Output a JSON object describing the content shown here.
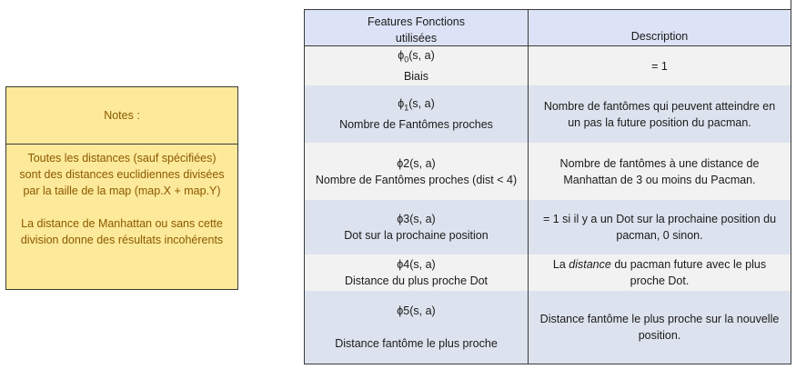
{
  "notes": {
    "title": "Notes :",
    "line1": "Toutes les distances (sauf spécifiées)",
    "line2": "sont des distances euclidiennes divisées",
    "line3": "par la taille de la map (map.X + map.Y)",
    "line4": "La distance de Manhattan ou sans cette",
    "line5": "division donne des résultats incohérents"
  },
  "table": {
    "header": {
      "col1_line1": "Features Fonctions",
      "col1_line2": "utilisées",
      "col2": "Description"
    },
    "rows": [
      {
        "phi": "ϕ",
        "sub": "0",
        "args": "(s, a)",
        "name": "Biais",
        "desc1": "= 1",
        "desc2": ""
      },
      {
        "phi": "ϕ",
        "sub": "1",
        "args": "(s, a)",
        "name": "Nombre de Fantômes proches",
        "desc1": "Nombre de fantômes qui peuvent atteindre en",
        "desc2": "un pas la future position du pacman."
      },
      {
        "label": "ϕ2(s, a)",
        "name": "Nombre de Fantômes proches (dist < 4)",
        "desc1": "Nombre de fantômes à une distance de",
        "desc2": "Manhattan de 3 ou moins du Pacman."
      },
      {
        "label": "ϕ3(s, a)",
        "name": "Dot sur la prochaine position",
        "desc1": "=  1 si il y a un Dot sur la prochaine position du",
        "desc2": "pacman, 0 sinon."
      },
      {
        "label": "ϕ4(s, a)",
        "name": "Distance du plus proche Dot",
        "desc_a": "La ",
        "desc_em": "distance",
        "desc_b": " du pacman future avec le plus",
        "desc2": "proche Dot."
      },
      {
        "label": "ϕ5(s, a)",
        "name": "Distance fantôme le plus proche",
        "desc1": "Distance fantôme le plus proche sur la nouvelle",
        "desc2": "position."
      }
    ]
  }
}
